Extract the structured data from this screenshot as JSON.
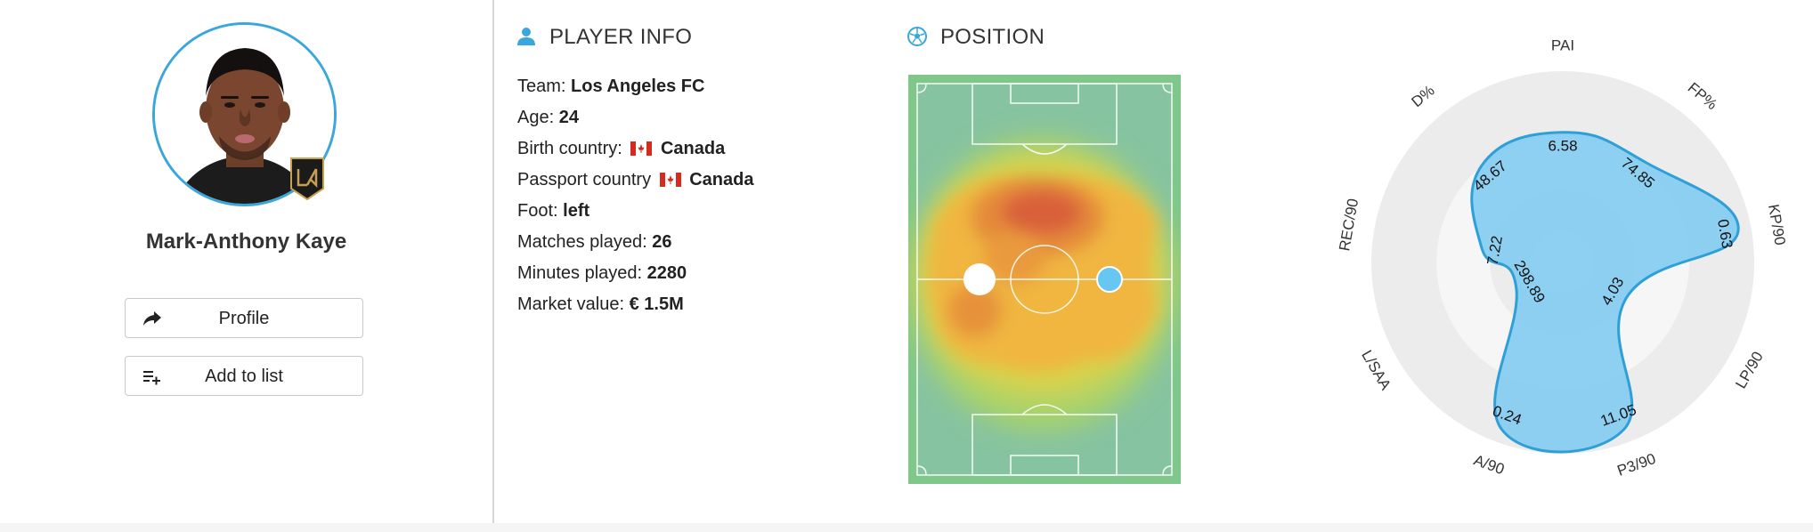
{
  "player": {
    "name": "Mark-Anthony Kaye",
    "buttons": {
      "profile_label": "Profile",
      "add_to_list_label": "Add to list"
    }
  },
  "player_info": {
    "title": "PLAYER INFO",
    "team_label": "Team:",
    "team": "Los Angeles FC",
    "age_label": "Age:",
    "age": "24",
    "birth_country_label": "Birth country:",
    "birth_country": "Canada",
    "passport_country_label": "Passport country",
    "passport_country": "Canada",
    "foot_label": "Foot:",
    "foot": "left",
    "matches_label": "Matches played:",
    "matches": "26",
    "minutes_label": "Minutes played:",
    "minutes": "2280",
    "market_value_label": "Market value:",
    "market_value": "€ 1.5M"
  },
  "position": {
    "title": "POSITION"
  },
  "radar": {
    "axes": [
      {
        "label": "PAI",
        "value": "6.58"
      },
      {
        "label": "FP%",
        "value": "74.85"
      },
      {
        "label": "KP/90",
        "value": "0.63"
      },
      {
        "label": "LP/90",
        "value": "4.03"
      },
      {
        "label": "P3/90",
        "value": "11.05"
      },
      {
        "label": "A/90",
        "value": "0.24"
      },
      {
        "label": "L/SAA",
        "value": "298.89"
      },
      {
        "label": "REC/90",
        "value": "7.22"
      },
      {
        "label": "D%",
        "value": "48.67"
      }
    ],
    "radii": [
      0.68,
      0.68,
      0.93,
      0.38,
      0.93,
      0.93,
      0.28,
      0.43,
      0.66
    ],
    "colors": {
      "fill": "#88cdf0",
      "stroke": "#2f9fd8",
      "ring": "#ececec"
    }
  },
  "colors": {
    "accent": "#3aa7dc",
    "pitch": "#79c58a"
  }
}
